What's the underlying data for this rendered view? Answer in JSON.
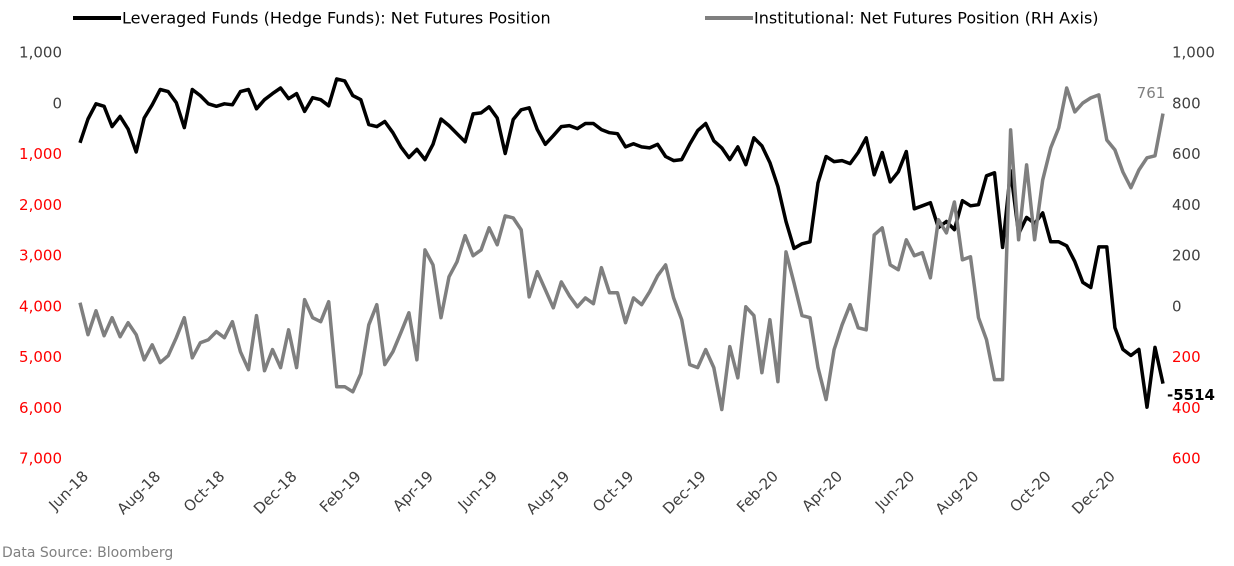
{
  "chart_data": {
    "type": "line",
    "series": [
      {
        "name": "Leveraged Funds (Hedge Funds): Net Futures Position",
        "color": "#000000",
        "axis": "y",
        "values": [
          -770,
          -300,
          0,
          -50,
          -450,
          -250,
          -500,
          -950,
          -280,
          -20,
          280,
          240,
          20,
          -470,
          280,
          160,
          0,
          -50,
          0,
          -20,
          240,
          280,
          -100,
          80,
          200,
          310,
          100,
          200,
          -150,
          120,
          80,
          -40,
          490,
          450,
          160,
          80,
          -410,
          -450,
          -350,
          -570,
          -850,
          -1060,
          -900,
          -1100,
          -800,
          -300,
          -430,
          -590,
          -750,
          -200,
          -180,
          -60,
          -280,
          -980,
          -310,
          -120,
          -80,
          -510,
          -800,
          -630,
          -450,
          -430,
          -490,
          -390,
          -390,
          -510,
          -570,
          -590,
          -850,
          -790,
          -850,
          -870,
          -800,
          -1040,
          -1120,
          -1100,
          -800,
          -530,
          -390,
          -730,
          -870,
          -1100,
          -850,
          -1200,
          -670,
          -830,
          -1160,
          -1630,
          -2320,
          -2850,
          -2760,
          -2720,
          -1560,
          -1040,
          -1140,
          -1120,
          -1180,
          -960,
          -670,
          -1400,
          -960,
          -1540,
          -1340,
          -940,
          -2070,
          -2010,
          -1950,
          -2440,
          -2320,
          -2480,
          -1910,
          -2010,
          -1990,
          -1420,
          -1360,
          -2830,
          -1320,
          -2560,
          -2240,
          -2360,
          -2150,
          -2720,
          -2720,
          -2800,
          -3110,
          -3520,
          -3620,
          -2820,
          -2820,
          -4410,
          -4840,
          -4960,
          -4840,
          -5980,
          -4800,
          -5514
        ]
      },
      {
        "name": "Institutional: Net Futures Position (RH Axis)",
        "color": "#7f7f7f",
        "axis": "y2",
        "values": [
          16,
          -110,
          -16,
          -114,
          -43,
          -118,
          -63,
          -110,
          -209,
          -150,
          -220,
          -193,
          -122,
          -43,
          -201,
          -142,
          -130,
          -98,
          -122,
          -59,
          -177,
          -248,
          -35,
          -252,
          -169,
          -240,
          -91,
          -240,
          28,
          -43,
          -59,
          20,
          -315,
          -315,
          -335,
          -264,
          -71,
          8,
          -228,
          -177,
          -102,
          -24,
          -209,
          224,
          165,
          -43,
          118,
          177,
          280,
          201,
          224,
          311,
          244,
          358,
          350,
          303,
          39,
          138,
          67,
          -4,
          98,
          43,
          0,
          35,
          12,
          154,
          55,
          55,
          -63,
          35,
          8,
          59,
          122,
          165,
          35,
          -51,
          -228,
          -240,
          -169,
          -240,
          -405,
          -157,
          -280,
          0,
          -35,
          -260,
          -51,
          -295,
          216,
          94,
          -35,
          -43,
          -240,
          -366,
          -169,
          -71,
          8,
          -83,
          -91,
          283,
          311,
          165,
          146,
          264,
          201,
          213,
          114,
          343,
          291,
          413,
          185,
          197,
          -43,
          -130,
          -287,
          -287,
          697,
          264,
          559,
          264,
          500,
          626,
          705,
          862,
          768,
          803,
          823,
          835,
          657,
          618,
          531,
          469,
          539,
          587,
          595,
          761
        ]
      }
    ],
    "categories": [
      "Jun-18",
      null,
      null,
      null,
      null,
      null,
      null,
      null,
      null,
      "Aug-18",
      null,
      null,
      null,
      null,
      null,
      null,
      null,
      "Oct-18",
      null,
      null,
      null,
      null,
      null,
      null,
      null,
      null,
      "Dec-18",
      null,
      null,
      null,
      null,
      null,
      null,
      null,
      "Feb-19",
      null,
      null,
      null,
      null,
      null,
      null,
      null,
      null,
      "Apr-19",
      null,
      null,
      null,
      null,
      null,
      null,
      null,
      "Jun-19",
      null,
      null,
      null,
      null,
      null,
      null,
      null,
      null,
      "Aug-19",
      null,
      null,
      null,
      null,
      null,
      null,
      null,
      "Oct-19",
      null,
      null,
      null,
      null,
      null,
      null,
      null,
      null,
      "Dec-19",
      null,
      null,
      null,
      null,
      null,
      null,
      null,
      null,
      "Feb-20",
      null,
      null,
      null,
      null,
      null,
      null,
      null,
      "Apr-20",
      null,
      null,
      null,
      null,
      null,
      null,
      null,
      null,
      "Jun-20",
      null,
      null,
      null,
      null,
      null,
      null,
      null,
      "Aug-20",
      null,
      null,
      null,
      null,
      null,
      null,
      null,
      null,
      "Oct-20",
      null,
      null,
      null,
      null,
      null,
      null,
      null,
      "Dec-20",
      null,
      null,
      null,
      null,
      null,
      null,
      null
    ],
    "ylim": [
      -7000,
      1000
    ],
    "yticks": [
      {
        "value": 1000,
        "label": "1,000"
      },
      0,
      {
        "value": -1000,
        "label": "1,000"
      },
      {
        "value": -2000,
        "label": "2,000"
      },
      {
        "value": -3000,
        "label": "3,000"
      },
      {
        "value": -4000,
        "label": "4,000"
      },
      {
        "value": -5000,
        "label": "5,000"
      },
      {
        "value": -6000,
        "label": "6,000"
      },
      {
        "value": -7000,
        "label": "7,000"
      }
    ],
    "y2lim": [
      -600,
      1000
    ],
    "y2ticks": [
      {
        "value": 1000,
        "label": "1,000"
      },
      800,
      600,
      400,
      200,
      0,
      {
        "value": -200,
        "label": "200"
      },
      {
        "value": -400,
        "label": "400"
      },
      {
        "value": -600,
        "label": "600"
      }
    ],
    "negative_tick_color": "#ff0000",
    "grid": false,
    "source": "Data Source: Bloomberg"
  }
}
